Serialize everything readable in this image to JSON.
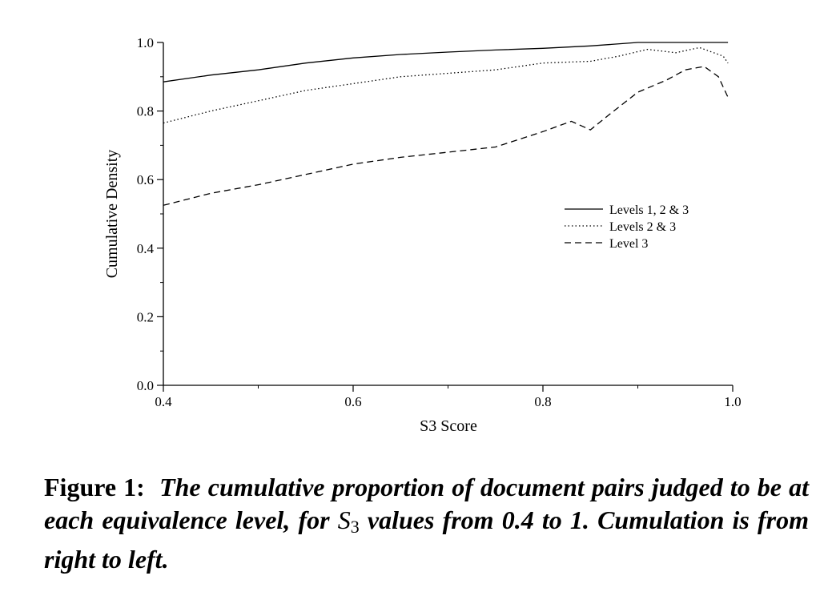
{
  "chart_data": {
    "type": "line",
    "xlabel": "S3 Score",
    "ylabel": "Cumulative Density",
    "xlim": [
      0.4,
      1.0
    ],
    "ylim": [
      0.0,
      1.0
    ],
    "x_ticks": [
      "0.4",
      "0.6",
      "0.8",
      "1.0"
    ],
    "y_ticks": [
      "0.0",
      "0.2",
      "0.4",
      "0.6",
      "0.8",
      "1.0"
    ],
    "grid": false,
    "legend_position": "right-middle",
    "series": [
      {
        "name": "Levels 1, 2 & 3",
        "style": "solid",
        "x": [
          0.4,
          0.45,
          0.5,
          0.55,
          0.6,
          0.65,
          0.7,
          0.75,
          0.8,
          0.85,
          0.9,
          0.95,
          0.995
        ],
        "y": [
          0.885,
          0.905,
          0.92,
          0.94,
          0.955,
          0.965,
          0.972,
          0.978,
          0.983,
          0.99,
          1.0,
          1.0,
          1.0
        ]
      },
      {
        "name": "Levels 2 & 3",
        "style": "dotted",
        "x": [
          0.4,
          0.45,
          0.5,
          0.55,
          0.6,
          0.65,
          0.7,
          0.75,
          0.8,
          0.85,
          0.88,
          0.91,
          0.94,
          0.965,
          0.98,
          0.99,
          0.995
        ],
        "y": [
          0.765,
          0.8,
          0.83,
          0.86,
          0.88,
          0.9,
          0.91,
          0.92,
          0.94,
          0.945,
          0.96,
          0.98,
          0.97,
          0.985,
          0.97,
          0.96,
          0.94
        ]
      },
      {
        "name": "Level 3",
        "style": "dashed",
        "x": [
          0.4,
          0.45,
          0.5,
          0.55,
          0.6,
          0.65,
          0.7,
          0.75,
          0.8,
          0.83,
          0.85,
          0.87,
          0.9,
          0.93,
          0.95,
          0.97,
          0.985,
          0.995
        ],
        "y": [
          0.525,
          0.56,
          0.585,
          0.615,
          0.645,
          0.665,
          0.68,
          0.695,
          0.74,
          0.77,
          0.745,
          0.79,
          0.855,
          0.89,
          0.92,
          0.93,
          0.9,
          0.84
        ]
      }
    ]
  },
  "caption": {
    "label": "Figure 1:",
    "text_before": "The cumulative proportion of document pairs judged to be at each equivalence level, for",
    "math_var": "S",
    "math_sub": "3",
    "text_after": "values from 0.4 to 1.  Cumulation is from right to left."
  }
}
